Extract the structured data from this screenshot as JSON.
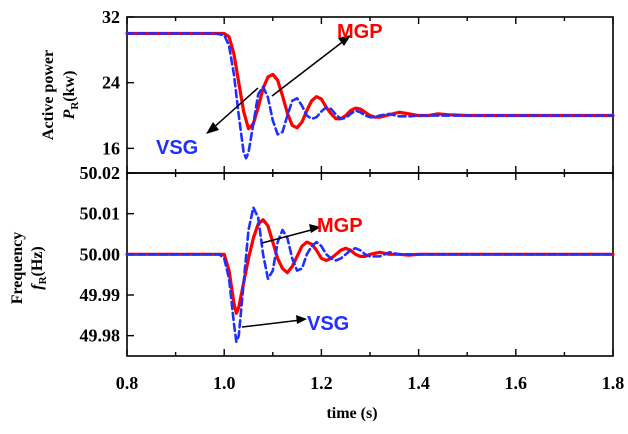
{
  "chart_data": [
    {
      "type": "line",
      "ylabel": "Active power",
      "ylabel_symbol": "P",
      "ylabel_sub": "R",
      "ylabel_unit": "(kw)",
      "xlim": [
        0.8,
        1.8
      ],
      "ylim": [
        13,
        32
      ],
      "yticks": [
        "16",
        "24",
        "32"
      ],
      "ytick_values": [
        16,
        24,
        32
      ],
      "series": [
        {
          "name": "MGP",
          "color": "#ff0000",
          "dash": "solid",
          "x": [
            0.8,
            0.98,
            1.0,
            1.01,
            1.02,
            1.03,
            1.04,
            1.05,
            1.06,
            1.07,
            1.08,
            1.09,
            1.1,
            1.11,
            1.12,
            1.13,
            1.14,
            1.15,
            1.16,
            1.17,
            1.18,
            1.19,
            1.2,
            1.21,
            1.22,
            1.23,
            1.24,
            1.25,
            1.26,
            1.27,
            1.28,
            1.29,
            1.3,
            1.31,
            1.32,
            1.34,
            1.36,
            1.38,
            1.4,
            1.42,
            1.44,
            1.46,
            1.5,
            1.8
          ],
          "values": [
            30.0,
            30.0,
            30.0,
            29.6,
            27.5,
            24.0,
            20.5,
            18.4,
            19.0,
            21.0,
            23.3,
            24.7,
            25.0,
            24.3,
            22.4,
            20.3,
            18.8,
            18.5,
            19.2,
            20.6,
            21.8,
            22.3,
            22.0,
            21.0,
            20.2,
            19.6,
            19.6,
            20.0,
            20.6,
            20.9,
            20.8,
            20.4,
            20.0,
            19.8,
            19.8,
            20.1,
            20.4,
            20.2,
            20.0,
            20.0,
            20.2,
            20.1,
            20.0,
            20.0
          ]
        },
        {
          "name": "VSG",
          "color": "#1f2fff",
          "dash": "dashed",
          "x": [
            0.8,
            0.98,
            1.0,
            1.01,
            1.02,
            1.03,
            1.04,
            1.045,
            1.05,
            1.06,
            1.07,
            1.08,
            1.09,
            1.1,
            1.11,
            1.12,
            1.13,
            1.14,
            1.15,
            1.16,
            1.17,
            1.18,
            1.19,
            1.2,
            1.21,
            1.22,
            1.23,
            1.24,
            1.25,
            1.26,
            1.27,
            1.28,
            1.29,
            1.3,
            1.31,
            1.32,
            1.34,
            1.36,
            1.38,
            1.4,
            1.42,
            1.45,
            1.5,
            1.8
          ],
          "values": [
            30.0,
            30.0,
            29.8,
            28.5,
            25.0,
            20.0,
            15.5,
            14.8,
            15.5,
            19.0,
            22.6,
            23.5,
            22.2,
            19.4,
            17.7,
            18.0,
            20.0,
            21.8,
            22.1,
            21.2,
            20.0,
            19.6,
            19.8,
            20.5,
            21.0,
            20.8,
            20.1,
            19.6,
            19.7,
            20.2,
            20.6,
            20.4,
            20.0,
            19.8,
            19.8,
            20.0,
            20.2,
            19.9,
            19.9,
            20.0,
            20.0,
            20.0,
            20.0,
            20.0
          ]
        }
      ],
      "annotations": [
        "MGP",
        "VSG"
      ]
    },
    {
      "type": "line",
      "ylabel": "Frequency",
      "ylabel_symbol": "f",
      "ylabel_sub": "R",
      "ylabel_unit": "(Hz)",
      "xlim": [
        0.8,
        1.8
      ],
      "ylim": [
        49.975,
        50.02
      ],
      "yticks": [
        "50.02",
        "50.01",
        "50.00",
        "49.99",
        "49.98"
      ],
      "ytick_values": [
        50.02,
        50.01,
        50.0,
        49.99,
        49.98
      ],
      "series": [
        {
          "name": "MGP",
          "color": "#ff0000",
          "dash": "solid",
          "x": [
            0.8,
            1.0,
            1.01,
            1.02,
            1.025,
            1.03,
            1.04,
            1.05,
            1.06,
            1.07,
            1.08,
            1.09,
            1.1,
            1.11,
            1.12,
            1.13,
            1.14,
            1.15,
            1.16,
            1.17,
            1.18,
            1.19,
            1.2,
            1.21,
            1.22,
            1.23,
            1.24,
            1.25,
            1.26,
            1.27,
            1.28,
            1.29,
            1.3,
            1.32,
            1.34,
            1.36,
            1.38,
            1.4,
            1.45,
            1.5,
            1.8
          ],
          "values": [
            50.0,
            50.0,
            49.996,
            49.988,
            49.9855,
            49.987,
            49.993,
            49.999,
            50.004,
            50.0075,
            50.0085,
            50.007,
            50.003,
            49.999,
            49.9965,
            49.9955,
            49.997,
            49.9995,
            50.002,
            50.003,
            50.0025,
            50.001,
            49.999,
            49.9985,
            49.999,
            50.0,
            50.001,
            50.0015,
            50.001,
            50.0,
            49.9995,
            49.9995,
            50.0,
            50.0005,
            50.0,
            50.0,
            49.9998,
            50.0,
            50.0,
            50.0,
            50.0
          ]
        },
        {
          "name": "VSG",
          "color": "#1f2fff",
          "dash": "dashed",
          "x": [
            0.8,
            0.99,
            1.0,
            1.01,
            1.02,
            1.025,
            1.03,
            1.04,
            1.05,
            1.06,
            1.07,
            1.08,
            1.09,
            1.1,
            1.11,
            1.12,
            1.13,
            1.14,
            1.15,
            1.16,
            1.17,
            1.18,
            1.19,
            1.2,
            1.21,
            1.22,
            1.23,
            1.24,
            1.25,
            1.26,
            1.27,
            1.28,
            1.29,
            1.3,
            1.32,
            1.34,
            1.36,
            1.38,
            1.4,
            1.45,
            1.5,
            1.8
          ],
          "values": [
            50.0,
            50.0,
            49.999,
            49.994,
            49.983,
            49.9785,
            49.98,
            49.993,
            50.006,
            50.0115,
            50.009,
            50.0,
            49.994,
            49.996,
            50.003,
            50.006,
            50.004,
            49.999,
            49.996,
            49.9965,
            50.0,
            50.002,
            50.003,
            50.002,
            50.0,
            49.999,
            49.9985,
            49.999,
            50.0,
            50.001,
            50.0015,
            50.001,
            50.0,
            49.9995,
            49.9995,
            50.0005,
            50.0,
            50.0,
            50.0,
            50.0,
            50.0,
            50.0
          ]
        }
      ],
      "annotations": [
        "MGP",
        "VSG"
      ]
    }
  ],
  "xaxis": {
    "title": "time (s)",
    "ticks": [
      "0.8",
      "1.0",
      "1.2",
      "1.4",
      "1.6",
      "1.8"
    ],
    "tick_values": [
      0.8,
      1.0,
      1.2,
      1.4,
      1.6,
      1.8
    ]
  }
}
